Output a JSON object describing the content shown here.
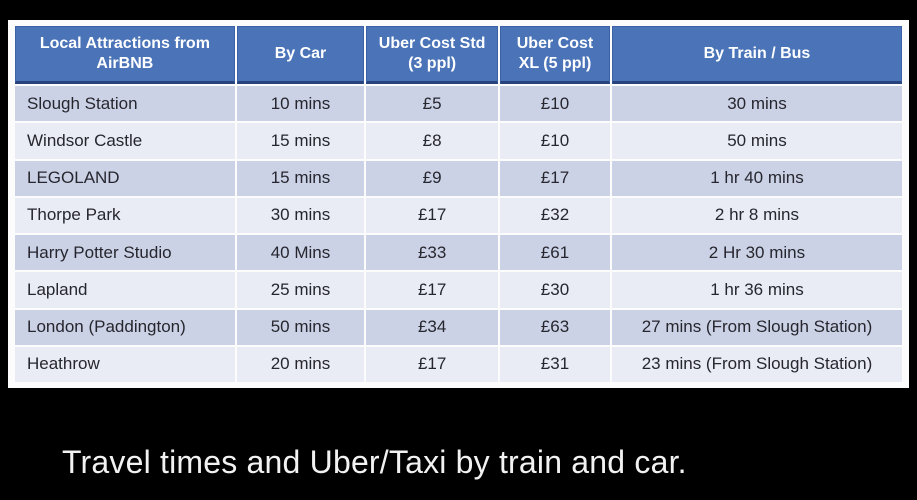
{
  "colors": {
    "page_background": "#000000",
    "panel_background": "#fcfcfd",
    "header_background": "#4a73b8",
    "header_text": "#ffffff",
    "header_bottom_border": "#27437e",
    "row_dark": "#ccd2e6",
    "row_light": "#e9ebf5",
    "cell_text": "#26262e",
    "caption_text": "#f2f2f2"
  },
  "caption": "Travel times and Uber/Taxi by train and car.",
  "chart_data": {
    "type": "table",
    "caption": "Travel times and Uber/Taxi by train and car.",
    "columns": [
      "Local Attractions from AirBNB",
      "By Car",
      "Uber Cost Std (3 ppl)",
      "Uber Cost XL (5 ppl)",
      "By Train / Bus"
    ],
    "rows": [
      [
        "Slough Station",
        "10 mins",
        "£5",
        "£10",
        "30 mins"
      ],
      [
        "Windsor Castle",
        "15 mins",
        "£8",
        "£10",
        "50 mins"
      ],
      [
        "LEGOLAND",
        "15 mins",
        "£9",
        "£17",
        "1 hr 40 mins"
      ],
      [
        "Thorpe Park",
        "30 mins",
        "£17",
        "£32",
        "2 hr 8 mins"
      ],
      [
        "Harry Potter Studio",
        "40 Mins",
        "£33",
        "£61",
        "2 Hr 30 mins"
      ],
      [
        "Lapland",
        "25 mins",
        "£17",
        "£30",
        "1 hr 36 mins"
      ],
      [
        "London (Paddington)",
        "50 mins",
        "£34",
        "£63",
        "27 mins (From Slough Station)"
      ],
      [
        "Heathrow",
        "20 mins",
        "£17",
        "£31",
        "23 mins (From Slough Station)"
      ]
    ],
    "layout": {
      "banding": "alternating rows, dark first",
      "header_style": "bold white on medium blue",
      "first_column_align": "left",
      "other_columns_align": "center"
    }
  }
}
